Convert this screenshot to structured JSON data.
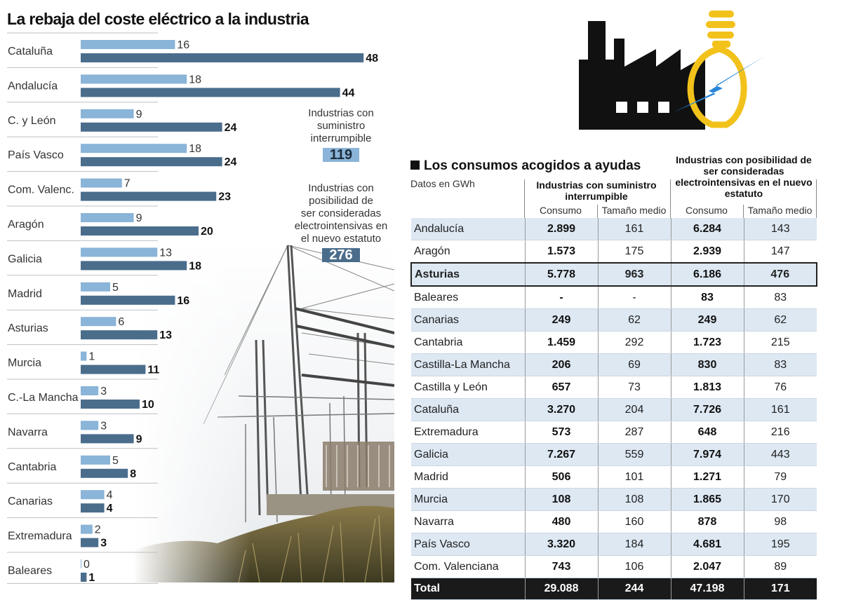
{
  "title": "La rebaja del coste eléctrico a la industria",
  "chart_data": {
    "type": "bar",
    "orientation": "horizontal",
    "title": "La rebaja del coste eléctrico a la industria",
    "categories": [
      "Cataluña",
      "Andalucía",
      "C. y León",
      "País Vasco",
      "Com. Valenc.",
      "Aragón",
      "Galicia",
      "Madrid",
      "Asturias",
      "Murcia",
      "C.-La Mancha",
      "Navarra",
      "Cantabria",
      "Canarias",
      "Extremadura",
      "Baleares"
    ],
    "series": [
      {
        "name": "Industrias con suministro interrumpible",
        "color": "#8ab4d8",
        "values": [
          16,
          18,
          9,
          18,
          7,
          9,
          13,
          5,
          6,
          1,
          3,
          3,
          5,
          4,
          2,
          0
        ]
      },
      {
        "name": "Industrias con posibilidad de ser consideradas electrointensivas en el nuevo estatuto",
        "color": "#4b6d8c",
        "values": [
          48,
          44,
          24,
          24,
          23,
          20,
          18,
          16,
          13,
          11,
          10,
          9,
          8,
          4,
          3,
          1
        ]
      }
    ],
    "xlim": [
      0,
      48
    ]
  },
  "totals": [
    {
      "label_lines": [
        "Industrias con",
        "suministro",
        "interrumpible"
      ],
      "value": "119"
    },
    {
      "label_lines": [
        "Industrias con",
        "posibilidad de",
        "ser consideradas",
        "electrointensivas en",
        "el nuevo estatuto"
      ],
      "value": "276"
    }
  ],
  "table": {
    "title": "Los consumos acogidos a ayudas",
    "units": "Datos en GWh",
    "group1": "Industrias con suministro interrumpible",
    "group2": "Industrias con posibilidad de ser consideradas electrointensivas en el nuevo estatuto",
    "col_consumo": "Consumo",
    "col_tamano": "Tamaño medio",
    "rows": [
      {
        "name": "Andalucía",
        "c1": "2.899",
        "t1": "161",
        "c2": "6.284",
        "t2": "143"
      },
      {
        "name": "Aragón",
        "c1": "1.573",
        "t1": "175",
        "c2": "2.939",
        "t2": "147"
      },
      {
        "name": "Asturias",
        "c1": "5.778",
        "t1": "963",
        "c2": "6.186",
        "t2": "476"
      },
      {
        "name": "Baleares",
        "c1": "-",
        "t1": "-",
        "c2": "83",
        "t2": "83"
      },
      {
        "name": "Canarias",
        "c1": "249",
        "t1": "62",
        "c2": "249",
        "t2": "62"
      },
      {
        "name": "Cantabria",
        "c1": "1.459",
        "t1": "292",
        "c2": "1.723",
        "t2": "215"
      },
      {
        "name": "Castilla-La Mancha",
        "c1": "206",
        "t1": "69",
        "c2": "830",
        "t2": "83"
      },
      {
        "name": "Castilla y León",
        "c1": "657",
        "t1": "73",
        "c2": "1.813",
        "t2": "76"
      },
      {
        "name": "Cataluña",
        "c1": "3.270",
        "t1": "204",
        "c2": "7.726",
        "t2": "161"
      },
      {
        "name": "Extremadura",
        "c1": "573",
        "t1": "287",
        "c2": "648",
        "t2": "216"
      },
      {
        "name": "Galicia",
        "c1": "7.267",
        "t1": "559",
        "c2": "7.974",
        "t2": "443"
      },
      {
        "name": "Madrid",
        "c1": "506",
        "t1": "101",
        "c2": "1.271",
        "t2": "79"
      },
      {
        "name": "Murcia",
        "c1": "108",
        "t1": "108",
        "c2": "1.865",
        "t2": "170"
      },
      {
        "name": "Navarra",
        "c1": "480",
        "t1": "160",
        "c2": "878",
        "t2": "98"
      },
      {
        "name": "País Vasco",
        "c1": "3.320",
        "t1": "184",
        "c2": "4.681",
        "t2": "195"
      },
      {
        "name": "Com. Valenciana",
        "c1": "743",
        "t1": "106",
        "c2": "2.047",
        "t2": "89"
      }
    ],
    "highlight_row": "Asturias",
    "total": {
      "name": "Total",
      "c1": "29.088",
      "t1": "244",
      "c2": "47.198",
      "t2": "171"
    }
  },
  "colors": {
    "light_bar": "#8ab4d8",
    "dark_bar": "#4b6d8c",
    "bulb": "#f2c21b",
    "bolt": "#2a86d8",
    "factory": "#111111"
  }
}
